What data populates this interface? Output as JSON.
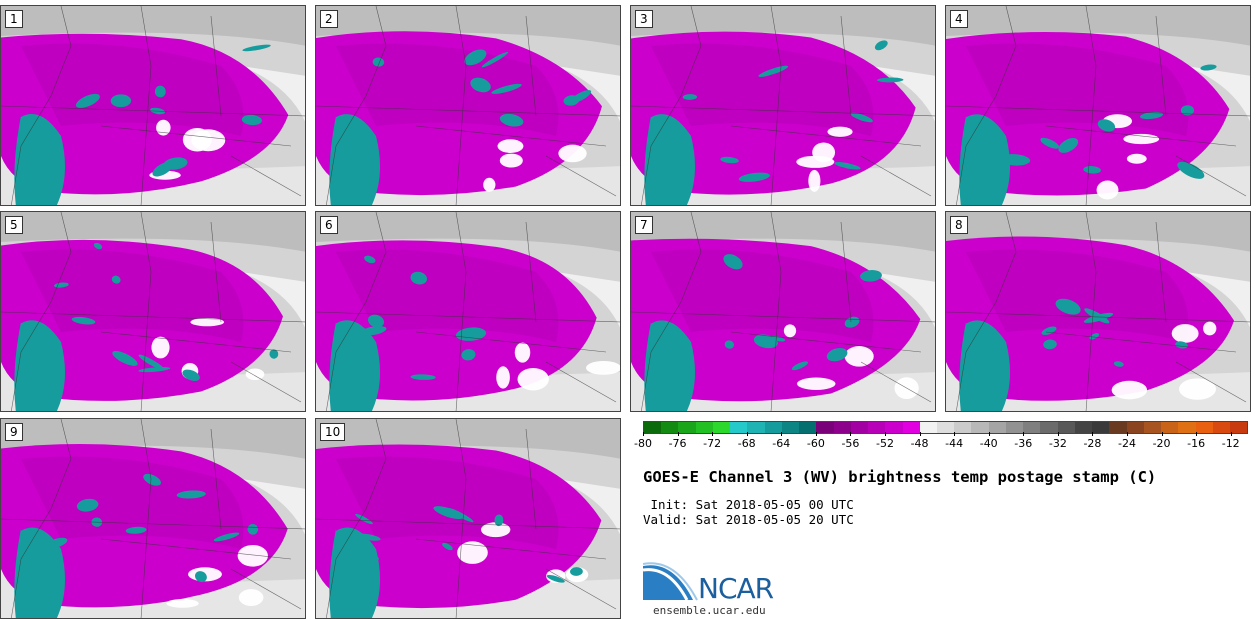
{
  "panels": [
    {
      "label": "1"
    },
    {
      "label": "2"
    },
    {
      "label": "3"
    },
    {
      "label": "4"
    },
    {
      "label": "5"
    },
    {
      "label": "6"
    },
    {
      "label": "7"
    },
    {
      "label": "8"
    },
    {
      "label": "9"
    },
    {
      "label": "10"
    }
  ],
  "colorbar": {
    "colors": [
      "#0b6b0b",
      "#138b13",
      "#1aa51a",
      "#22c022",
      "#2bd82b",
      "#26c9c9",
      "#1fb3b3",
      "#169c9c",
      "#0d8585",
      "#056e6e",
      "#7a007a",
      "#8c008c",
      "#a300a3",
      "#b800b8",
      "#cc00cc",
      "#e000e0",
      "#f2f2f2",
      "#dedede",
      "#cbcbcb",
      "#b8b8b8",
      "#a5a5a5",
      "#929292",
      "#7f7f7f",
      "#6b6b6b",
      "#585858",
      "#444444",
      "#3a3a3a",
      "#6a3a20",
      "#8a4520",
      "#a85420",
      "#c86318",
      "#e07014",
      "#e86010",
      "#d84a10",
      "#c83a10"
    ],
    "ticks": [
      "-80",
      "-76",
      "-72",
      "-68",
      "-64",
      "-60",
      "-56",
      "-52",
      "-48",
      "-44",
      "-40",
      "-36",
      "-32",
      "-28",
      "-24",
      "-20",
      "-16",
      "-12"
    ]
  },
  "title": "GOES-E Channel 3 (WV) brightness temp postage stamp (C)",
  "init": " Init: Sat 2018-05-05 00 UTC",
  "valid": "Valid: Sat 2018-05-05 20 UTC",
  "logo": {
    "text": "NCAR",
    "url": "ensemble.ucar.edu"
  },
  "colors": {
    "magenta": "#cc00cc",
    "teal": "#169c9c",
    "gray": "#cfcfcf",
    "logo_blue": "#1b5f9e"
  }
}
